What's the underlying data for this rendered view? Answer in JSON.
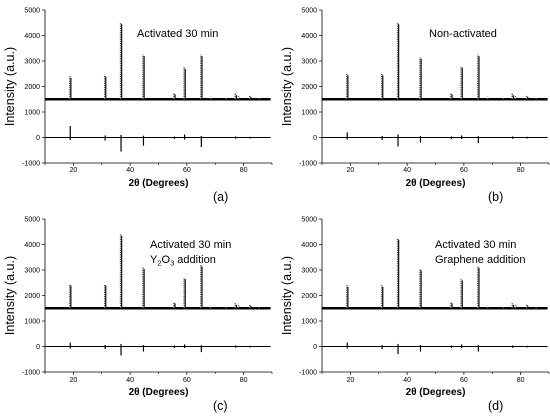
{
  "figure": {
    "background": "#ffffff"
  },
  "chart_data": [
    {
      "type": "line",
      "panel_label": "(a)",
      "annotation_lines": [
        [
          "Activated 30 min"
        ]
      ],
      "ylabel": "Intensity (a.u.)",
      "xlabel_parts": [
        "2",
        "θ",
        " (Degrees)"
      ],
      "xlim": [
        10,
        90
      ],
      "ylim": [
        -1000,
        5000
      ],
      "xticks": [
        20,
        40,
        60,
        80
      ],
      "yticks": [
        -1000,
        0,
        1000,
        2000,
        3000,
        4000,
        5000
      ],
      "baseline": 1500,
      "difference_baseline": 0,
      "series": [
        {
          "role": "pattern",
          "peaks": [
            [
              18.9,
              2400
            ],
            [
              31.2,
              2450
            ],
            [
              36.8,
              4500
            ],
            [
              44.7,
              3250
            ],
            [
              55.6,
              1750
            ],
            [
              59.2,
              2750
            ],
            [
              65.1,
              3250
            ],
            [
              68.5,
              1600
            ],
            [
              74.0,
              1580
            ],
            [
              77.2,
              1720
            ],
            [
              78.3,
              1620
            ],
            [
              82.3,
              1650
            ],
            [
              85.6,
              1560
            ]
          ]
        },
        {
          "role": "difference",
          "spikes": [
            [
              18.9,
              450,
              -100
            ],
            [
              31.2,
              80,
              -120
            ],
            [
              36.8,
              100,
              -550
            ],
            [
              44.7,
              70,
              -320
            ],
            [
              55.6,
              40,
              -60
            ],
            [
              59.2,
              120,
              -80
            ],
            [
              65.1,
              60,
              -380
            ],
            [
              77.2,
              40,
              -50
            ],
            [
              82.3,
              30,
              -40
            ]
          ]
        }
      ]
    },
    {
      "type": "line",
      "panel_label": "(b)",
      "annotation_lines": [
        [
          "Non-activated"
        ]
      ],
      "ylabel": "Intensity (a.u.)",
      "xlabel_parts": [
        "2",
        "θ",
        " (Degrees)"
      ],
      "xlim": [
        10,
        90
      ],
      "ylim": [
        -1000,
        5000
      ],
      "xticks": [
        20,
        40,
        60,
        80
      ],
      "yticks": [
        -1000,
        0,
        1000,
        2000,
        3000,
        4000,
        5000
      ],
      "baseline": 1500,
      "difference_baseline": 0,
      "series": [
        {
          "role": "pattern",
          "peaks": [
            [
              18.9,
              2500
            ],
            [
              31.2,
              2500
            ],
            [
              36.8,
              4500
            ],
            [
              44.7,
              3150
            ],
            [
              55.6,
              1750
            ],
            [
              59.2,
              2800
            ],
            [
              65.1,
              3250
            ],
            [
              68.5,
              1600
            ],
            [
              74.0,
              1580
            ],
            [
              77.2,
              1720
            ],
            [
              78.3,
              1620
            ],
            [
              82.3,
              1650
            ],
            [
              85.6,
              1560
            ]
          ]
        },
        {
          "role": "difference",
          "spikes": [
            [
              18.9,
              200,
              -80
            ],
            [
              31.2,
              60,
              -100
            ],
            [
              36.8,
              120,
              -350
            ],
            [
              44.7,
              60,
              -200
            ],
            [
              55.6,
              40,
              -60
            ],
            [
              59.2,
              80,
              -60
            ],
            [
              65.1,
              50,
              -220
            ],
            [
              77.2,
              40,
              -50
            ],
            [
              82.3,
              30,
              -40
            ]
          ]
        }
      ]
    },
    {
      "type": "line",
      "panel_label": "(c)",
      "annotation_lines": [
        [
          "Activated 30 min"
        ],
        [
          "Y",
          "2",
          "O",
          "3",
          " addition"
        ]
      ],
      "ylabel": "Intensity (a.u.)",
      "xlabel_parts": [
        "2",
        "θ",
        " (Degrees)"
      ],
      "xlim": [
        10,
        90
      ],
      "ylim": [
        -1000,
        5000
      ],
      "xticks": [
        20,
        40,
        60,
        80
      ],
      "yticks": [
        -1000,
        0,
        1000,
        2000,
        3000,
        4000,
        5000
      ],
      "baseline": 1500,
      "difference_baseline": 0,
      "series": [
        {
          "role": "pattern",
          "peaks": [
            [
              18.9,
              2450
            ],
            [
              31.2,
              2450
            ],
            [
              36.8,
              4400
            ],
            [
              44.7,
              3100
            ],
            [
              55.6,
              1750
            ],
            [
              59.2,
              2700
            ],
            [
              65.1,
              3200
            ],
            [
              68.5,
              1600
            ],
            [
              74.0,
              1580
            ],
            [
              77.2,
              1700
            ],
            [
              78.3,
              1620
            ],
            [
              82.3,
              1650
            ],
            [
              85.6,
              1560
            ]
          ]
        },
        {
          "role": "difference",
          "spikes": [
            [
              18.9,
              150,
              -80
            ],
            [
              31.2,
              60,
              -100
            ],
            [
              36.8,
              100,
              -350
            ],
            [
              44.7,
              60,
              -200
            ],
            [
              55.6,
              40,
              -60
            ],
            [
              59.2,
              80,
              -60
            ],
            [
              65.1,
              50,
              -220
            ],
            [
              77.2,
              40,
              -50
            ],
            [
              82.3,
              30,
              -40
            ]
          ]
        }
      ]
    },
    {
      "type": "line",
      "panel_label": "(d)",
      "annotation_lines": [
        [
          "Activated 30 min"
        ],
        [
          "Graphene addition"
        ]
      ],
      "ylabel": "Intensity (a.u.)",
      "xlabel_parts": [
        "2",
        "θ",
        " (Degrees)"
      ],
      "xlim": [
        10,
        90
      ],
      "ylim": [
        -1000,
        5000
      ],
      "xticks": [
        20,
        40,
        60,
        80
      ],
      "yticks": [
        -1000,
        0,
        1000,
        2000,
        3000,
        4000,
        5000
      ],
      "baseline": 1500,
      "difference_baseline": 0,
      "series": [
        {
          "role": "pattern",
          "peaks": [
            [
              18.9,
              2400
            ],
            [
              31.2,
              2400
            ],
            [
              36.8,
              4250
            ],
            [
              44.7,
              3050
            ],
            [
              55.6,
              1750
            ],
            [
              59.2,
              2650
            ],
            [
              65.1,
              3150
            ],
            [
              68.5,
              1600
            ],
            [
              74.0,
              1580
            ],
            [
              77.2,
              1700
            ],
            [
              78.3,
              1620
            ],
            [
              82.3,
              1650
            ],
            [
              85.6,
              1560
            ]
          ]
        },
        {
          "role": "difference",
          "spikes": [
            [
              18.9,
              150,
              -80
            ],
            [
              31.2,
              60,
              -100
            ],
            [
              36.8,
              100,
              -300
            ],
            [
              44.7,
              60,
              -200
            ],
            [
              55.6,
              40,
              -60
            ],
            [
              59.2,
              80,
              -60
            ],
            [
              65.1,
              50,
              -200
            ],
            [
              77.2,
              40,
              -50
            ],
            [
              82.3,
              30,
              -40
            ]
          ]
        }
      ]
    }
  ]
}
